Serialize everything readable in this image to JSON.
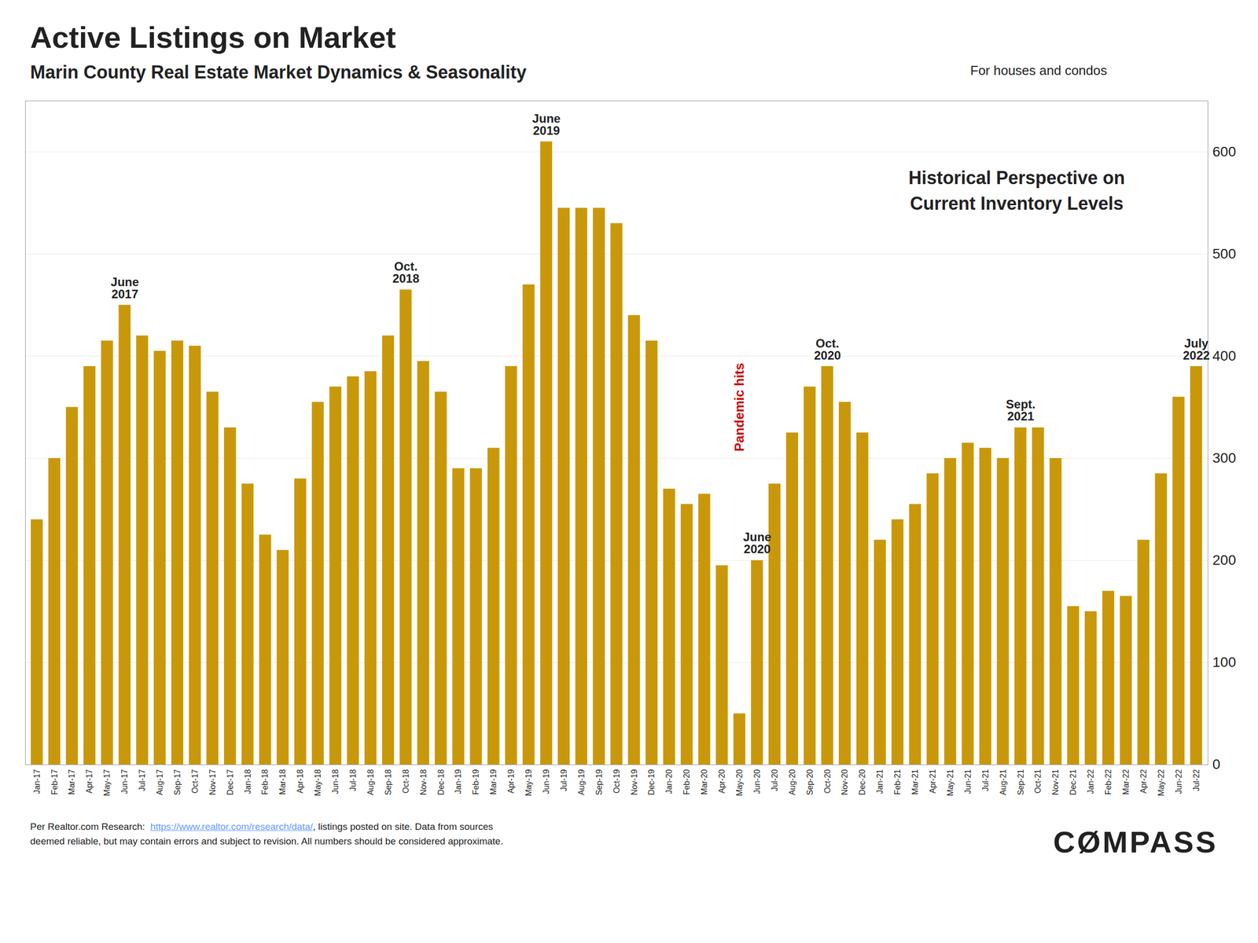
{
  "chart_data": {
    "type": "bar",
    "title": "Active Listings on Market",
    "subtitle": "Marin County Real Estate Market Dynamics & Seasonality",
    "note": "For houses and condos",
    "annotation_text": "Historical Perspective on\nCurrent Inventory Levels",
    "source": {
      "before": "Per Realtor.com Research:  ",
      "url": "https://www.realtor.com/research/data/",
      "url_color": "#6699FF",
      "after": ", listings posted on site. Data from sources",
      "second_line": "deemed reliable, but may contain errors and subject to revision. All numbers should be considered approximate."
    },
    "logo": "CØMPASS",
    "color": "#C9980A",
    "grid": true,
    "ylim": [
      0,
      650
    ],
    "yticks": [
      0,
      100,
      200,
      300,
      400,
      500,
      600
    ],
    "categories": [
      "Jan-17",
      "Feb-17",
      "Mar-17",
      "Apr-17",
      "May-17",
      "Jun-17",
      "Jul-17",
      "Aug-17",
      "Sep-17",
      "Oct-17",
      "Nov-17",
      "Dec-17",
      "Jan-18",
      "Feb-18",
      "Mar-18",
      "Apr-18",
      "May-18",
      "Jun-18",
      "Jul-18",
      "Aug-18",
      "Sep-18",
      "Oct-18",
      "Nov-18",
      "Dec-18",
      "Jan-19",
      "Feb-19",
      "Mar-19",
      "Apr-19",
      "May-19",
      "Jun-19",
      "Jul-19",
      "Aug-19",
      "Sep-19",
      "Oct-19",
      "Nov-19",
      "Dec-19",
      "Jan-20",
      "Feb-20",
      "Mar-20",
      "Apr-20",
      "May-20",
      "Jun-20",
      "Jul-20",
      "Aug-20",
      "Sep-20",
      "Oct-20",
      "Nov-20",
      "Dec-20",
      "Jan-21",
      "Feb-21",
      "Mar-21",
      "Apr-21",
      "May-21",
      "Jun-21",
      "Jul-21",
      "Aug-21",
      "Sep-21",
      "Oct-21",
      "Nov-21",
      "Dec-21",
      "Jan-22",
      "Feb-22",
      "Mar-22",
      "Apr-22",
      "May-22",
      "Jun-22",
      "Jul-22"
    ],
    "values": [
      240,
      300,
      350,
      390,
      415,
      450,
      420,
      405,
      415,
      410,
      365,
      330,
      275,
      225,
      210,
      280,
      355,
      370,
      380,
      385,
      420,
      465,
      395,
      365,
      290,
      290,
      310,
      390,
      470,
      610,
      545,
      545,
      545,
      530,
      440,
      415,
      270,
      255,
      265,
      195,
      50,
      200,
      275,
      325,
      370,
      390,
      355,
      325,
      220,
      240,
      255,
      285,
      300,
      315,
      310,
      300,
      330,
      330,
      300,
      155,
      150,
      170,
      165,
      220,
      285,
      360,
      390
    ],
    "peak_annotations": [
      {
        "x": "Jun-17",
        "label": "June\n2017"
      },
      {
        "x": "Oct-18",
        "label": "Oct.\n2018"
      },
      {
        "x": "Jun-19",
        "label": "June\n2019"
      },
      {
        "x": "Jun-20",
        "label": "June\n2020"
      },
      {
        "x": "Oct-20",
        "label": "Oct.\n2020"
      },
      {
        "x": "Sep-21",
        "label": "Sept.\n2021"
      },
      {
        "x": "Jul-22",
        "label": "July\n2022"
      }
    ],
    "pandemic_annotation": {
      "x": "May-20",
      "y": 350,
      "label": "Pandemic hits",
      "color": "#CC0000"
    }
  }
}
